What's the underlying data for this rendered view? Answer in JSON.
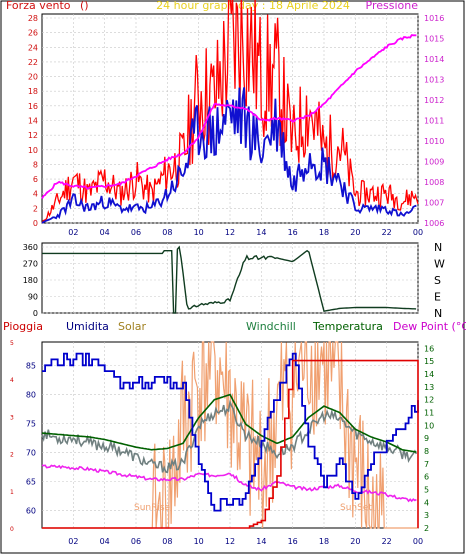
{
  "header": {
    "left": "Forza vento",
    "unit_left": "()",
    "center": "24 hour graph day : 18 Aprile 2024",
    "right": "Pressione"
  },
  "colors": {
    "wind_avg": "#1010d0",
    "wind_gust": "#ff0000",
    "pressure": "#ff00ff",
    "direction": "#103c20",
    "rain": "#e00000",
    "humidity": "#0000cc",
    "solar": "#f0a070",
    "windchill": "#708080",
    "temperature": "#006000",
    "dewpoint": "#ee22ee",
    "label_pioggia": "#cc0000",
    "label_umidita": "#000080",
    "label_solar": "#a08020",
    "label_windchill": "#208040",
    "label_temperatura": "#006000",
    "label_dewpoint": "#cc00cc"
  },
  "chart_data": [
    {
      "type": "line",
      "title": "24 hour graph day : 18 Aprile 2024",
      "xlabel": "",
      "xticks": [
        "02",
        "04",
        "06",
        "08",
        "10",
        "12",
        "14",
        "16",
        "18",
        "20",
        "22",
        "00"
      ],
      "xlim": [
        0,
        24
      ],
      "ylabel_left": "Forza vento ()",
      "ylim_left": [
        0,
        28
      ],
      "yticks_left": [
        "0",
        "2",
        "4",
        "6",
        "8",
        "10",
        "12",
        "14",
        "16",
        "18",
        "20",
        "22",
        "24",
        "26",
        "28"
      ],
      "ylabel_right": "Pressione",
      "ylim_right": [
        1006,
        1016
      ],
      "yticks_right": [
        "1006",
        "1007",
        "1008",
        "1009",
        "1010",
        "1011",
        "1012",
        "1013",
        "1014",
        "1015",
        "1016"
      ],
      "x": [
        0,
        1,
        2,
        3,
        4,
        5,
        6,
        7,
        8,
        9,
        10,
        11,
        12,
        13,
        14,
        15,
        16,
        17,
        18,
        19,
        20,
        21,
        22,
        23,
        24
      ],
      "series": [
        {
          "name": "gust",
          "axis": "left",
          "values": [
            0,
            3,
            6,
            4,
            6,
            4,
            6,
            4,
            7,
            9,
            18,
            17,
            24,
            26,
            20,
            20,
            11,
            16,
            10,
            11,
            4,
            4,
            4,
            3,
            4
          ]
        },
        {
          "name": "avg",
          "axis": "left",
          "values": [
            0,
            1,
            3,
            2,
            3,
            2,
            2,
            2,
            4,
            7,
            13,
            12,
            15,
            14,
            10,
            14,
            5,
            10,
            8,
            6,
            2,
            2,
            2,
            1,
            2
          ]
        },
        {
          "name": "Pressione",
          "axis": "right",
          "values": [
            1007.2,
            1008.0,
            1007.8,
            1007.7,
            1007.8,
            1007.9,
            1008.3,
            1008.7,
            1009.1,
            1009.4,
            1010.2,
            1011.8,
            1011.7,
            1011.6,
            1011.0,
            1011.1,
            1011.0,
            1011.2,
            1011.8,
            1012.6,
            1013.4,
            1014.0,
            1014.6,
            1015.0,
            1015.2
          ]
        }
      ]
    },
    {
      "type": "line",
      "title": "",
      "xticks": [],
      "ylim": [
        0,
        360
      ],
      "yticks": [
        "0",
        "90",
        "180",
        "270",
        "360"
      ],
      "direction_labels": [
        "N",
        "W",
        "S",
        "E",
        "N"
      ],
      "x": [
        0,
        2,
        4,
        6,
        7.8,
        8.3,
        8.8,
        9.3,
        10,
        11,
        12,
        13,
        14,
        15,
        16,
        17,
        18,
        19,
        20,
        21,
        22,
        23,
        24
      ],
      "values": [
        325,
        325,
        325,
        325,
        325,
        328,
        360,
        15,
        45,
        55,
        70,
        300,
        300,
        300,
        280,
        345,
        10,
        25,
        30,
        30,
        30,
        25,
        22
      ]
    },
    {
      "type": "line",
      "title": "",
      "xticks": [
        "02",
        "04",
        "06",
        "08",
        "10",
        "12",
        "14",
        "16",
        "18",
        "20",
        "22",
        "00"
      ],
      "xlim": [
        0,
        24
      ],
      "legend": [
        "Pioggia",
        "Umidita",
        "Solar",
        "Windchill",
        "Temperatura",
        "Dew Point (°C)"
      ],
      "ylim_humidity": [
        57,
        89
      ],
      "yticks_humidity": [
        "60",
        "65",
        "70",
        "75",
        "80",
        "85"
      ],
      "ylim_temp": [
        2,
        16.5
      ],
      "yticks_temp": [
        "2",
        "3",
        "4",
        "5",
        "6",
        "7",
        "8",
        "9",
        "10",
        "11",
        "12",
        "13",
        "14",
        "15",
        "16"
      ],
      "ylim_rain": [
        0,
        5
      ],
      "yticks_rain": [
        "0",
        "1",
        "2",
        "3",
        "4",
        "5"
      ],
      "x": [
        0,
        1,
        2,
        3,
        4,
        5,
        6,
        7,
        8,
        9,
        10,
        11,
        12,
        13,
        14,
        15,
        16,
        17,
        18,
        19,
        20,
        21,
        22,
        23,
        24
      ],
      "series": [
        {
          "name": "Umidita",
          "axis": "humidity",
          "values": [
            84,
            86,
            86,
            86,
            85,
            82,
            82,
            82,
            82,
            81,
            68,
            60,
            62,
            62,
            72,
            80,
            88,
            72,
            65,
            68,
            62,
            68,
            72,
            75,
            78
          ]
        },
        {
          "name": "Temperatura",
          "axis": "temp",
          "values": [
            9.4,
            9.3,
            9.2,
            9.1,
            8.9,
            8.6,
            8.3,
            8.1,
            8.2,
            8.6,
            10.6,
            12.0,
            12.4,
            10.1,
            9.2,
            8.6,
            9.1,
            10.6,
            11.5,
            11.0,
            9.7,
            9.1,
            8.7,
            8.1,
            7.9
          ]
        },
        {
          "name": "Windchill",
          "axis": "temp",
          "values": [
            9.4,
            9.0,
            9.0,
            8.6,
            8.4,
            8.1,
            7.5,
            6.9,
            6.7,
            7.0,
            10.0,
            11.0,
            11.4,
            9.3,
            8.6,
            7.8,
            8.4,
            9.6,
            10.8,
            10.5,
            9.4,
            8.8,
            8.3,
            7.8,
            7.5
          ]
        },
        {
          "name": "Dew Point (°C)",
          "axis": "temp",
          "values": [
            6.8,
            6.8,
            6.7,
            6.6,
            6.4,
            6.2,
            6.0,
            5.8,
            5.8,
            5.8,
            6.2,
            6.1,
            6.3,
            5.3,
            5.0,
            5.6,
            5.2,
            5.0,
            5.2,
            5.3,
            4.9,
            4.8,
            4.6,
            4.3,
            4.1
          ]
        },
        {
          "name": "Pioggia",
          "axis": "rain",
          "values": [
            0,
            0,
            0,
            0,
            0,
            0,
            0,
            0,
            0,
            0,
            0,
            0,
            0,
            0,
            0.2,
            1.4,
            4.5,
            4.5,
            4.5,
            4.5,
            4.5,
            4.5,
            4.5,
            4.5,
            4.5
          ]
        },
        {
          "name": "Solar",
          "axis": "solar",
          "values": [
            0,
            0,
            0,
            0,
            0,
            0,
            0,
            0,
            10,
            55,
            80,
            92,
            70,
            40,
            30,
            60,
            78,
            95,
            92,
            70,
            35,
            5,
            0,
            0,
            0
          ]
        }
      ],
      "annotations": [
        "SunRise",
        "SunSet"
      ]
    }
  ]
}
